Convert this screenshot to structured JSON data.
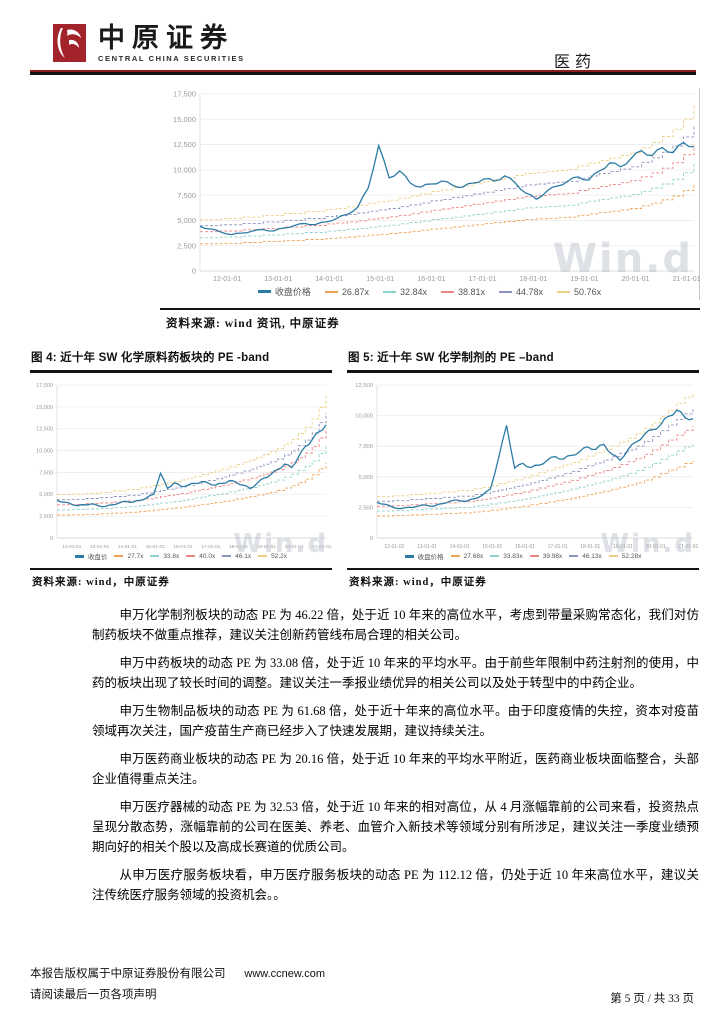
{
  "watermark": "Win.d",
  "header": {
    "brand_cn": "中原证券",
    "brand_en": "CENTRAL CHINA SECURITIES",
    "section_label": "医药",
    "brand_color": "#A2242A",
    "rule_red": "#8C1C1C"
  },
  "top_chart": {
    "source": "资料来源: wind 资讯, 中原证券"
  },
  "figures": [
    {
      "title": "图 4: 近十年 SW 化学原料药板块的 PE -band",
      "source": "资料来源: wind，中原证券"
    },
    {
      "title": "图 5: 近十年 SW 化学制剂的 PE –band",
      "source": "资料来源: wind，中原证券"
    }
  ],
  "chart_data": [
    {
      "type": "line",
      "title": "",
      "price_label": "收盘价格",
      "price_color": "#2B7BA5",
      "x_ticks": [
        "12-01-01",
        "13-01-01",
        "14-01-01",
        "15-01-01",
        "16-01-01",
        "17-01-01",
        "18-01-01",
        "19-01-01",
        "20-01-01",
        "21-01-01"
      ],
      "y_ticks": [
        0,
        2500,
        5000,
        7500,
        10000,
        12500,
        15000,
        17500
      ],
      "ylim": [
        0,
        17500
      ],
      "grid": true,
      "legend_position": "bottom",
      "price": [
        4400,
        4150,
        3850,
        3600,
        3750,
        3950,
        4100,
        3950,
        4250,
        4500,
        4700,
        4600,
        4850,
        5200,
        5600,
        6300,
        8200,
        12400,
        9200,
        9900,
        8700,
        8300,
        8600,
        8900,
        8500,
        8300,
        8700,
        9100,
        8900,
        9400,
        8700,
        7700,
        7100,
        7900,
        8400,
        8900,
        9300,
        9000,
        9900,
        10700,
        10300,
        11100,
        11900,
        11400,
        12200,
        11700,
        12700,
        12300
      ],
      "band_base": [
        100,
        100,
        102,
        102,
        105,
        105,
        108,
        108,
        112,
        112,
        116,
        116,
        120,
        122,
        125,
        128,
        132,
        135,
        138,
        142,
        146,
        150,
        155,
        158,
        162,
        166,
        170,
        174,
        178,
        182,
        186,
        190,
        192,
        194,
        196,
        198,
        205,
        210,
        215,
        220,
        225,
        230,
        240,
        250,
        262,
        276,
        296,
        322
      ],
      "bands": [
        {
          "label": "26.87x",
          "pe": 26.87,
          "color": "#F0A355"
        },
        {
          "label": "32.84x",
          "pe": 32.84,
          "color": "#8FD2CC"
        },
        {
          "label": "38.81x",
          "pe": 38.81,
          "color": "#EE8484"
        },
        {
          "label": "44.78x",
          "pe": 44.78,
          "color": "#8E92BE"
        },
        {
          "label": "50.76x",
          "pe": 50.76,
          "color": "#EDCF85"
        }
      ]
    },
    {
      "type": "line",
      "title": "图 4: 近十年 SW 化学原料药板块的 PE -band",
      "price_label": "收盘价",
      "price_color": "#2B7BA5",
      "x_ticks": [
        "12-01-01",
        "13-01-01",
        "14-01-01",
        "15-01-01",
        "16-01-01",
        "17-01-01",
        "18-01-01",
        "19-01-01",
        "20-01-01",
        "21-01-01"
      ],
      "y_ticks": [
        0,
        2500,
        5000,
        7500,
        10000,
        12500,
        15000,
        17500
      ],
      "ylim": [
        0,
        17500
      ],
      "grid": true,
      "legend_position": "bottom",
      "price": [
        4300,
        4100,
        3900,
        3700,
        3800,
        3900,
        3700,
        3600,
        3800,
        4000,
        4200,
        4100,
        4300,
        4600,
        5000,
        7400,
        5700,
        6300,
        5900,
        6050,
        6250,
        6450,
        6250,
        6050,
        6250,
        6550,
        6350,
        6050,
        5650,
        6250,
        6850,
        7250,
        7850,
        8450,
        8050,
        9250,
        10450,
        11250,
        12150,
        12950
      ],
      "band_base": [
        95,
        95,
        96,
        96,
        98,
        98,
        100,
        100,
        103,
        103,
        106,
        106,
        110,
        112,
        115,
        118,
        121,
        124,
        127,
        131,
        135,
        139,
        143,
        147,
        151,
        156,
        161,
        166,
        171,
        177,
        183,
        189,
        196,
        206,
        216,
        229,
        243,
        261,
        286,
        311
      ],
      "bands": [
        {
          "label": "27.7x",
          "pe": 27.7,
          "color": "#F0A355"
        },
        {
          "label": "33.8x",
          "pe": 33.8,
          "color": "#8FD2CC"
        },
        {
          "label": "40.0x",
          "pe": 40.0,
          "color": "#EE8484"
        },
        {
          "label": "46.1x",
          "pe": 46.1,
          "color": "#8E92BE"
        },
        {
          "label": "52.2x",
          "pe": 52.2,
          "color": "#EDCF85"
        }
      ]
    },
    {
      "type": "line",
      "title": "图 5: 近十年 SW 化学制剂的 PE –band",
      "price_label": "收盘价格",
      "price_color": "#2B7BA5",
      "x_ticks": [
        "12-01-01",
        "13-01-01",
        "14-01-01",
        "15-01-01",
        "16-01-01",
        "17-01-01",
        "18-01-01",
        "19-01-01",
        "20-01-01",
        "21-01-01"
      ],
      "y_ticks": [
        0,
        2500,
        5000,
        7500,
        10000,
        12500
      ],
      "ylim": [
        0,
        12500
      ],
      "grid": true,
      "legend_position": "bottom",
      "price": [
        2900,
        2750,
        2500,
        2400,
        2500,
        2600,
        2700,
        2600,
        2800,
        3000,
        3100,
        3000,
        3200,
        3500,
        4000,
        6500,
        9200,
        5700,
        6100,
        5750,
        5950,
        6350,
        6650,
        6450,
        6750,
        7050,
        7450,
        7250,
        7650,
        6850,
        6350,
        7250,
        7850,
        8450,
        8850,
        9250,
        9950,
        10450,
        9850,
        9750
      ],
      "band_base": [
        65,
        65,
        66,
        66,
        68,
        68,
        70,
        70,
        72,
        72,
        74,
        74,
        77,
        79,
        82,
        85,
        88,
        91,
        94,
        98,
        102,
        106,
        110,
        114,
        118,
        123,
        128,
        133,
        138,
        144,
        150,
        156,
        163,
        171,
        180,
        190,
        200,
        210,
        220,
        228
      ],
      "bands": [
        {
          "label": "27.68x",
          "pe": 27.68,
          "color": "#F0A355"
        },
        {
          "label": "33.83x",
          "pe": 33.83,
          "color": "#8FD2CC"
        },
        {
          "label": "39.98x",
          "pe": 39.98,
          "color": "#EE8484"
        },
        {
          "label": "46.13x",
          "pe": 46.13,
          "color": "#8E92BE"
        },
        {
          "label": "52.28x",
          "pe": 52.28,
          "color": "#EDCF85"
        }
      ]
    }
  ],
  "paragraphs": [
    "申万化学制剂板块的动态 PE 为 46.22 倍，处于近 10 年来的高位水平，考虑到带量采购常态化，我们对仿制药板块不做重点推荐，建议关注创新药管线布局合理的相关公司。",
    "申万中药板块的动态 PE 为 33.08 倍，处于近 10 年来的平均水平。由于前些年限制中药注射剂的使用，中药的板块出现了较长时间的调整。建议关注一季报业绩优异的相关公司以及处于转型中的中药企业。",
    "申万生物制品板块的动态 PE 为 61.68 倍，处于近十年来的高位水平。由于印度疫情的失控，资本对疫苗领域再次关注，国产疫苗生产商已经步入了快速发展期，建议持续关注。",
    "申万医药商业板块的动态 PE 为 20.16 倍，处于近 10 年来的平均水平附近，医药商业板块面临整合，头部企业值得重点关注。",
    "申万医疗器械的动态 PE 为 32.53 倍，处于近 10 年来的相对高位，从 4 月涨幅靠前的公司来看，投资热点呈现分散态势，涨幅靠前的公司在医美、养老、血管介入新技术等领域分别有所涉足，建议关注一季度业绩预期向好的相关个股以及高成长赛道的优质公司。",
    "从申万医疗服务板块看，申万医疗服务板块的动态 PE 为 112.12 倍，仍处于近 10 年来高位水平，建议关注传统医疗服务领域的投资机会。。"
  ],
  "footer": {
    "copyright": "本报告版权属于中原证券股份有限公司",
    "website": "www.ccnew.com",
    "disclaimer": "请阅读最后一页各项声明",
    "page_info": "第 5 页  /  共 33 页"
  }
}
